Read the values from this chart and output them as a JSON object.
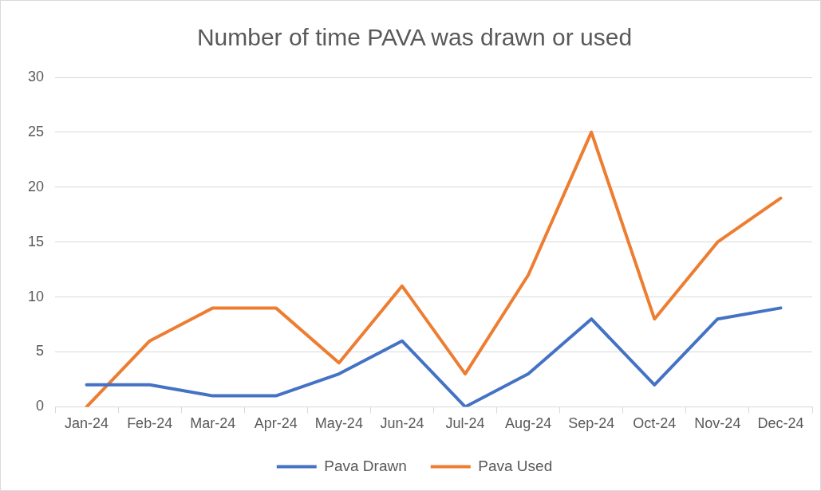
{
  "chart_data": {
    "type": "line",
    "title": "Number of time PAVA was drawn or used",
    "categories": [
      "Jan-24",
      "Feb-24",
      "Mar-24",
      "Apr-24",
      "May-24",
      "Jun-24",
      "Jul-24",
      "Aug-24",
      "Sep-24",
      "Oct-24",
      "Nov-24",
      "Dec-24"
    ],
    "series": [
      {
        "name": "Pava Drawn",
        "color": "#4472c4",
        "values": [
          2,
          2,
          1,
          1,
          3,
          6,
          0,
          3,
          8,
          2,
          8,
          9
        ]
      },
      {
        "name": "Pava Used",
        "color": "#ed7d31",
        "values": [
          0,
          6,
          9,
          9,
          4,
          11,
          3,
          12,
          25,
          8,
          15,
          19
        ]
      }
    ],
    "ylim": [
      0,
      30
    ],
    "yticks": [
      0,
      5,
      10,
      15,
      20,
      25,
      30
    ],
    "grid": "y",
    "legend": "bottom",
    "marker": "none",
    "line_style": "solid"
  }
}
